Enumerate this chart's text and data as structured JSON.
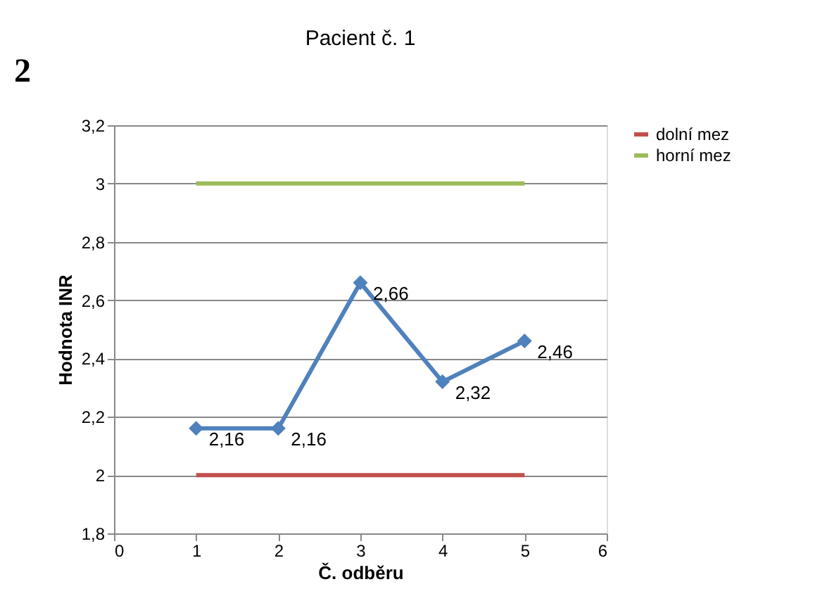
{
  "chart_data": {
    "type": "line",
    "title": "Pacient č. 1",
    "xlabel": "Č. odběru",
    "ylabel": "Hodnota INR",
    "annotations": [
      "2"
    ],
    "x": [
      1,
      2,
      3,
      4,
      5
    ],
    "series": [
      {
        "color": "#4f81bd",
        "values": [
          2.16,
          2.16,
          2.66,
          2.32,
          2.46
        ],
        "marker": "diamond",
        "value_labels": [
          "2,16",
          "2,16",
          "2,66",
          "2,32",
          "2,46"
        ]
      },
      {
        "name": "dolní mez",
        "color": "#c0504d",
        "values": [
          2,
          2,
          2,
          2,
          2
        ],
        "marker": "none"
      },
      {
        "name": "horní mez",
        "color": "#9bbb59",
        "values": [
          3,
          3,
          3,
          3,
          3
        ],
        "marker": "none"
      }
    ],
    "xlim": [
      0,
      6
    ],
    "xticks": [
      0,
      1,
      2,
      3,
      4,
      5,
      6
    ],
    "ylim": [
      1.8,
      3.2
    ],
    "yticks": [
      {
        "value": 1.8,
        "label": "1,8"
      },
      2,
      {
        "value": 2.2,
        "label": "2,2"
      },
      {
        "value": 2.4,
        "label": "2,4"
      },
      {
        "value": 2.6,
        "label": "2,6"
      },
      {
        "value": 2.8,
        "label": "2,8"
      },
      3,
      {
        "value": 3.2,
        "label": "3,2"
      }
    ],
    "grid": "y",
    "legend": "right",
    "line_style": "solid"
  }
}
